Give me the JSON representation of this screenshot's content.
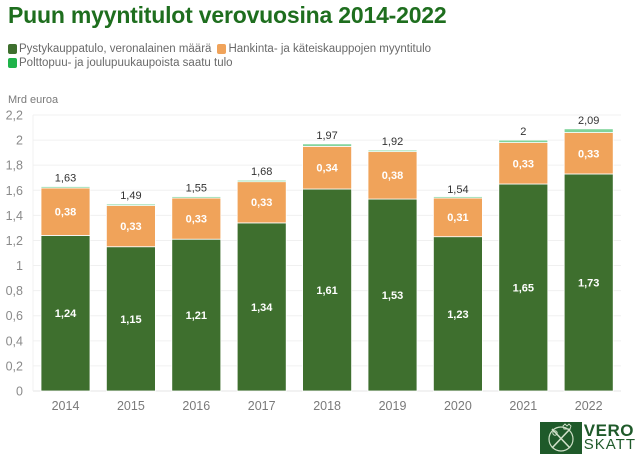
{
  "chart_data": {
    "type": "bar",
    "stacked": true,
    "title": "Puun myyntitulot verovuosina 2014-2022",
    "ylabel": "Mrd euroa",
    "xlabel": "",
    "ylim": [
      0,
      2.2
    ],
    "yticks": [
      0,
      0.2,
      0.4,
      0.6,
      0.8,
      1,
      1.2,
      1.4,
      1.6,
      1.8,
      2,
      2.2
    ],
    "ytick_labels": [
      "0",
      "0,2",
      "0,4",
      "0,6",
      "0,8",
      "1",
      "1,2",
      "1,4",
      "1,6",
      "1,8",
      "2",
      "2,2"
    ],
    "grid": true,
    "legend_position": "top-left",
    "categories": [
      "2014",
      "2015",
      "2016",
      "2017",
      "2018",
      "2019",
      "2020",
      "2021",
      "2022"
    ],
    "series": [
      {
        "name": "Pystykauppatulo, veronalainen määrä",
        "color": "#3e6f2e",
        "values": [
          1.24,
          1.15,
          1.21,
          1.34,
          1.61,
          1.53,
          1.23,
          1.65,
          1.73
        ],
        "labels": [
          "1,24",
          "1,15",
          "1,21",
          "1,34",
          "1,61",
          "1,53",
          "1,23",
          "1,65",
          "1,73"
        ]
      },
      {
        "name": "Hankinta- ja käteiskauppojen myyntitulo",
        "color": "#f0a35a",
        "values": [
          0.38,
          0.33,
          0.33,
          0.33,
          0.34,
          0.38,
          0.31,
          0.33,
          0.33
        ],
        "labels": [
          "0,38",
          "0,33",
          "0,33",
          "0,33",
          "0,34",
          "0,38",
          "0,31",
          "0,33",
          "0,33"
        ]
      },
      {
        "name": "Polttopuu- ja joulupuukaupoista saatu tulo",
        "color": "#7fd39a",
        "legend_color": "#1fb34a",
        "values": [
          0.01,
          0.01,
          0.01,
          0.01,
          0.02,
          0.01,
          0.01,
          0.02,
          0.03
        ]
      }
    ],
    "totals": [
      1.63,
      1.49,
      1.55,
      1.68,
      1.97,
      1.92,
      1.54,
      2,
      2.09
    ],
    "total_labels": [
      "1,63",
      "1,49",
      "1,55",
      "1,68",
      "1,97",
      "1,92",
      "1,54",
      "2",
      "2,09"
    ]
  },
  "logo": {
    "line1": "VERO",
    "line2": "SKATT"
  }
}
